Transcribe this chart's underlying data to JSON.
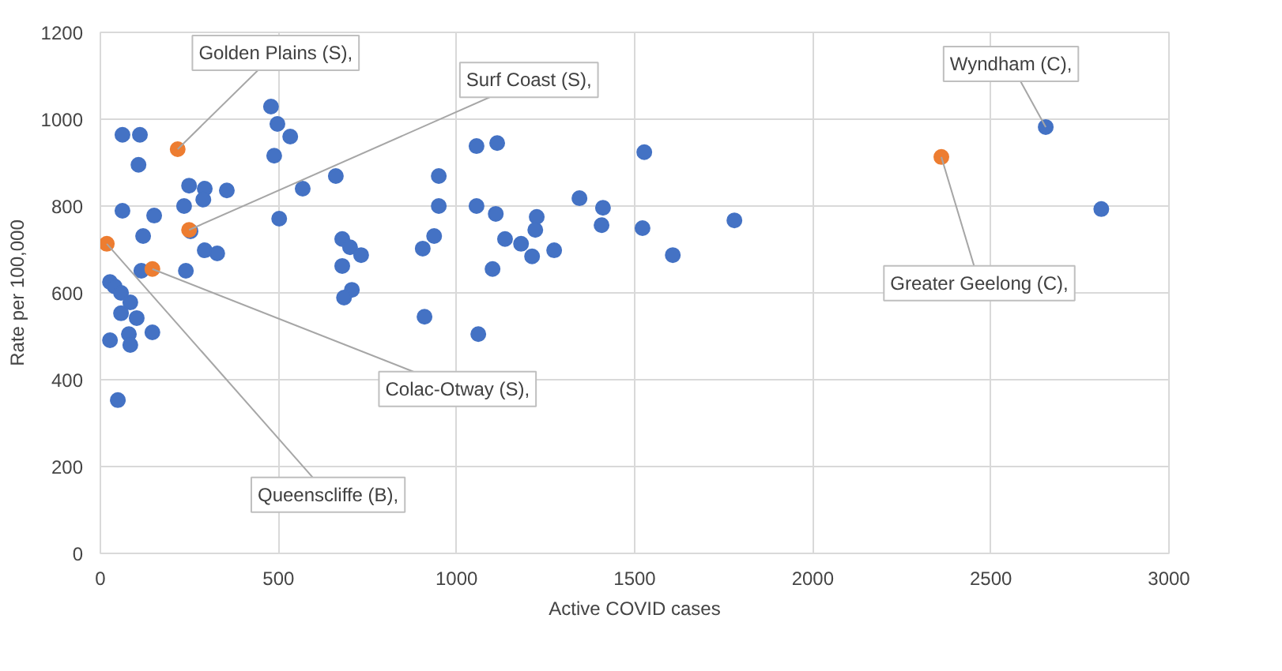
{
  "chart_data": {
    "type": "scatter",
    "xlabel": "Active COVID cases",
    "ylabel": "Rate per 100,000",
    "xlim": [
      0,
      3000
    ],
    "ylim": [
      0,
      1200
    ],
    "xticks": [
      0,
      500,
      1000,
      1500,
      2000,
      2500,
      3000
    ],
    "yticks": [
      0,
      200,
      400,
      600,
      800,
      1000,
      1200
    ],
    "grid": true,
    "marker": "circle",
    "series": [
      {
        "color": "#4472c4",
        "x": [
          62,
          111,
          107,
          62,
          151,
          120,
          249,
          293,
          355,
          235,
          289,
          253,
          293,
          328,
          240,
          479,
          497,
          533,
          488,
          502,
          568,
          661,
          950,
          950,
          937,
          905,
          679,
          701,
          732,
          679,
          706,
          684,
          910,
          1061,
          1056,
          1114,
          1056,
          1110,
          1225,
          1221,
          1136,
          1181,
          1212,
          1274,
          1101,
          1345,
          1411,
          1407,
          1527,
          1522,
          1607,
          1780,
          2654,
          2810,
          27,
          40,
          58,
          84,
          58,
          102,
          80,
          27,
          84,
          146,
          115,
          49
        ],
        "values": [
          964,
          964,
          895,
          789,
          778,
          731,
          847,
          840,
          836,
          800,
          815,
          742,
          698,
          691,
          651,
          1029,
          989,
          960,
          916,
          771,
          840,
          869,
          869,
          800,
          731,
          702,
          724,
          705,
          687,
          662,
          607,
          589,
          545,
          505,
          938,
          945,
          800,
          782,
          775,
          745,
          724,
          713,
          684,
          698,
          655,
          818,
          796,
          756,
          924,
          749,
          687,
          767,
          982,
          793,
          625,
          615,
          600,
          578,
          553,
          542,
          505,
          491,
          480,
          509,
          651,
          353
        ]
      },
      {
        "color": "#ed7d31",
        "x": [
          217,
          249,
          146,
          18,
          2361
        ],
        "values": [
          931,
          745,
          655,
          713,
          913
        ]
      }
    ],
    "annotations": [
      {
        "text": "Golden Plains (S),",
        "x": 217,
        "y": 931
      },
      {
        "text": "Surf Coast (S),",
        "x": 249,
        "y": 745
      },
      {
        "text": "Colac-Otway (S),",
        "x": 146,
        "y": 655
      },
      {
        "text": "Queenscliffe (B),",
        "x": 18,
        "y": 713
      },
      {
        "text": "Greater Geelong (C),",
        "x": 2361,
        "y": 913
      },
      {
        "text": "Wyndham (C),",
        "x": 2654,
        "y": 982
      }
    ]
  }
}
